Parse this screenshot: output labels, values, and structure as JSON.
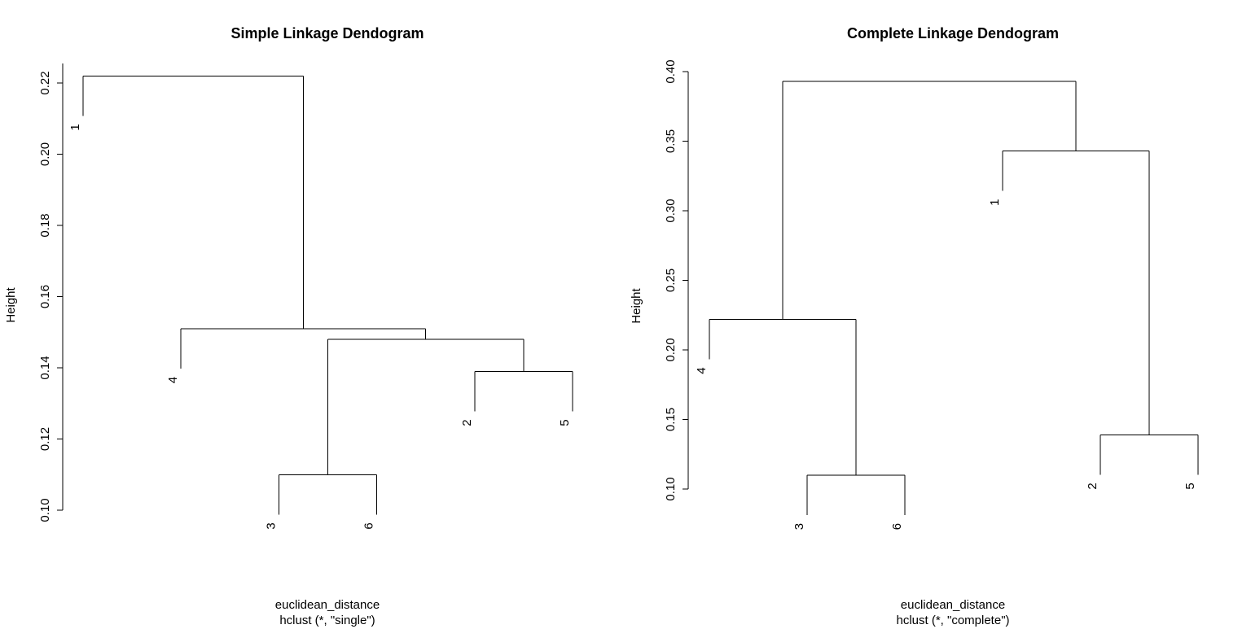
{
  "chart_data": [
    {
      "type": "dendrogram",
      "title": "Simple Linkage Dendogram",
      "ylabel": "Height",
      "xlabel": "euclidean_distance",
      "sub": "hclust (*, \"single\")",
      "ylim": [
        0.1,
        0.22
      ],
      "yticks": [
        {
          "v": 0.1,
          "t": "0.10"
        },
        {
          "v": 0.12,
          "t": "0.12"
        },
        {
          "v": 0.14,
          "t": "0.14"
        },
        {
          "v": 0.16,
          "t": "0.16"
        },
        {
          "v": 0.18,
          "t": "0.18"
        },
        {
          "v": 0.2,
          "t": "0.20"
        },
        {
          "v": 0.22,
          "t": "0.22"
        }
      ],
      "leaf_order": [
        "1",
        "4",
        "3",
        "6",
        "2",
        "5"
      ],
      "merges": [
        {
          "a": "3",
          "b": "6",
          "height": 0.11
        },
        {
          "a": "2",
          "b": "5",
          "height": 0.139
        },
        {
          "a": "3,6",
          "b": "2,5",
          "height": 0.148
        },
        {
          "a": "4",
          "b": "3,6,2,5",
          "height": 0.151
        },
        {
          "a": "1",
          "b": "4,3,6,2,5",
          "height": 0.222
        }
      ]
    },
    {
      "type": "dendrogram",
      "title": "Complete Linkage Dendogram",
      "ylabel": "Height",
      "xlabel": "euclidean_distance",
      "sub": "hclust (*, \"complete\")",
      "ylim": [
        0.1,
        0.4
      ],
      "yticks": [
        {
          "v": 0.1,
          "t": "0.10"
        },
        {
          "v": 0.15,
          "t": "0.15"
        },
        {
          "v": 0.2,
          "t": "0.20"
        },
        {
          "v": 0.25,
          "t": "0.25"
        },
        {
          "v": 0.3,
          "t": "0.30"
        },
        {
          "v": 0.35,
          "t": "0.35"
        },
        {
          "v": 0.4,
          "t": "0.40"
        }
      ],
      "leaf_order": [
        "4",
        "3",
        "6",
        "1",
        "2",
        "5"
      ],
      "merges": [
        {
          "a": "3",
          "b": "6",
          "height": 0.11
        },
        {
          "a": "2",
          "b": "5",
          "height": 0.139
        },
        {
          "a": "4",
          "b": "3,6",
          "height": 0.222
        },
        {
          "a": "1",
          "b": "2,5",
          "height": 0.343
        },
        {
          "a": "4,3,6",
          "b": "1,2,5",
          "height": 0.393
        }
      ]
    }
  ]
}
